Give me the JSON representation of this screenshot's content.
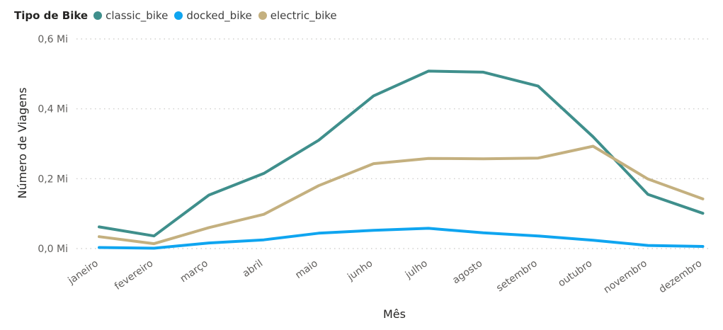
{
  "chart_data": {
    "type": "line",
    "legend_title": "Tipo de Bike",
    "legend_position": "top-left",
    "xlabel": "Mês",
    "ylabel": "Número de Viagens",
    "ylim": [
      0,
      0.6
    ],
    "y_unit": "Mi",
    "y_ticks": [
      "0,0 Mi",
      "0,2 Mi",
      "0,4 Mi",
      "0,6 Mi"
    ],
    "y_tick_values": [
      0,
      0.2,
      0.4,
      0.6
    ],
    "grid": "horizontal dotted",
    "categories": [
      "janeiro",
      "fevereiro",
      "março",
      "abril",
      "maio",
      "junho",
      "julho",
      "agosto",
      "setembro",
      "outubro",
      "novembro",
      "dezembro"
    ],
    "series": [
      {
        "name": "classic_bike",
        "color": "#3f8f8c",
        "values": [
          0.062,
          0.036,
          0.153,
          0.215,
          0.31,
          0.437,
          0.508,
          0.505,
          0.465,
          0.32,
          0.155,
          0.101
        ]
      },
      {
        "name": "docked_bike",
        "color": "#0fa5f0",
        "values": [
          0.003,
          0.001,
          0.016,
          0.025,
          0.044,
          0.052,
          0.058,
          0.045,
          0.036,
          0.024,
          0.009,
          0.006
        ]
      },
      {
        "name": "electric_bike",
        "color": "#c4b07f",
        "values": [
          0.034,
          0.014,
          0.06,
          0.098,
          0.18,
          0.243,
          0.258,
          0.257,
          0.259,
          0.293,
          0.199,
          0.142
        ]
      }
    ]
  }
}
